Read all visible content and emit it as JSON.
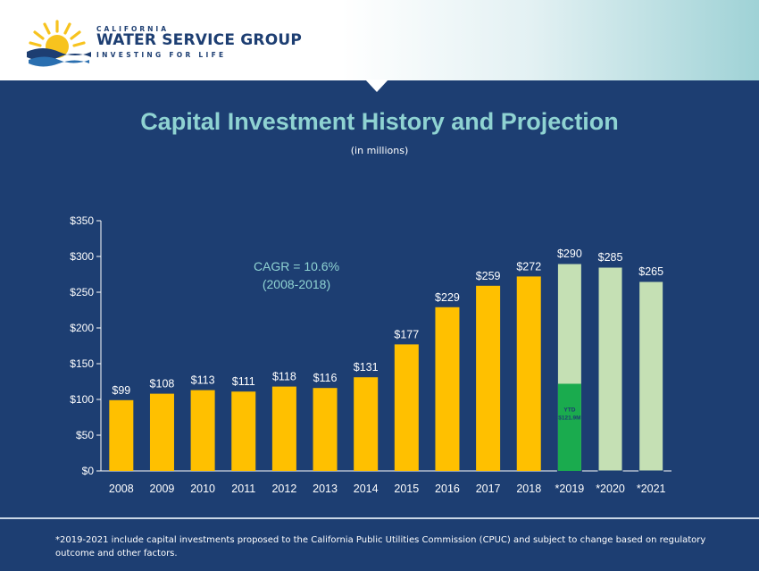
{
  "header": {
    "logo_top": "CALIFORNIA",
    "logo_brand": "WATER SERVICE GROUP",
    "logo_tagline": "INVESTING FOR LIFE"
  },
  "title": "Capital Investment History and Projection",
  "subtitle": "(in millions)",
  "footnote": "*2019-2021 include capital investments proposed to the California Public Utilities Commission (CPUC) and subject to change based on regulatory outcome and other factors.",
  "colors": {
    "background": "#1d3e72",
    "bar_actual": "#ffc000",
    "bar_projected": "#c5e0b4",
    "bar_ytd": "#1aab4e",
    "title": "#8fd3d2"
  },
  "chart_data": {
    "type": "bar",
    "categories": [
      "2008",
      "2009",
      "2010",
      "2011",
      "2012",
      "2013",
      "2014",
      "2015",
      "2016",
      "2017",
      "2018",
      "*2019",
      "*2020",
      "*2021"
    ],
    "values": [
      99,
      108,
      113,
      111,
      118,
      116,
      131,
      177,
      229,
      259,
      272,
      290,
      285,
      265
    ],
    "labels": [
      "$99",
      "$108",
      "$113",
      "$111",
      "$118",
      "$116",
      "$131",
      "$177",
      "$229",
      "$259",
      "$272",
      "$290",
      "$285",
      "$265"
    ],
    "projected": [
      false,
      false,
      false,
      false,
      false,
      false,
      false,
      false,
      false,
      false,
      false,
      true,
      true,
      true
    ],
    "ytd": {
      "category": "*2019",
      "value": 121.9,
      "label_line1": "YTD",
      "label_line2": "$121.9M"
    },
    "yticks": [
      "$0",
      "$50",
      "$100",
      "$150",
      "$200",
      "$250",
      "$300",
      "$350"
    ],
    "ylim": [
      0,
      350
    ],
    "annotation": [
      "CAGR = 10.6%",
      "(2008-2018)"
    ],
    "grid": false
  }
}
